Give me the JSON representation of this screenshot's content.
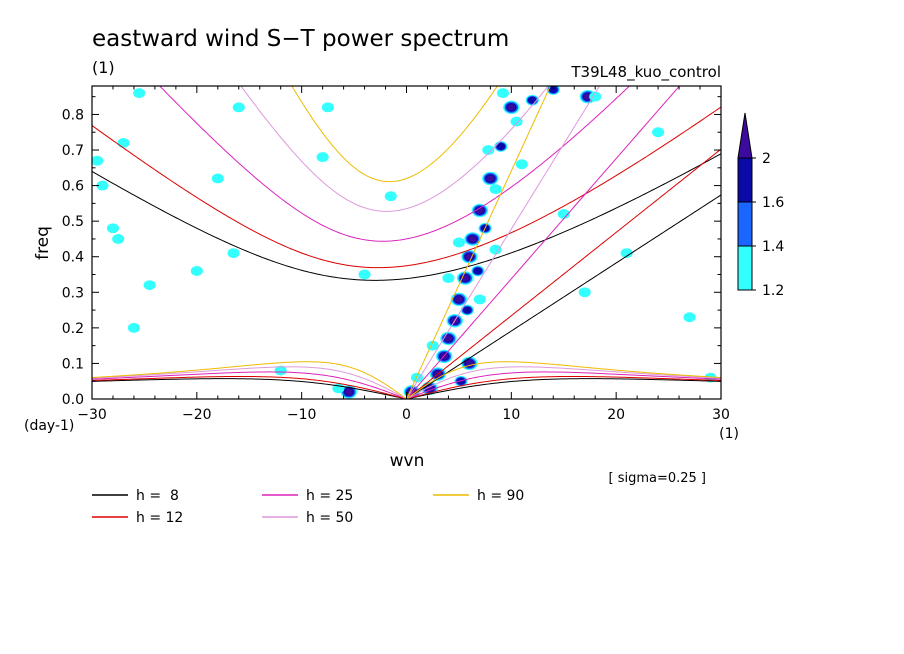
{
  "chart_data": {
    "type": "heatmap",
    "title": "eastward wind S−T power spectrum",
    "subtitle": "(1)",
    "run_label": "T39L48_kuo_control",
    "xlabel": "wvn",
    "ylabel": "freq",
    "x_unit": "(1)",
    "y_unit": "(day-1)",
    "xlim": [
      -30,
      30
    ],
    "ylim": [
      0,
      0.88
    ],
    "x_ticks": [
      -30,
      -20,
      -10,
      0,
      10,
      20,
      30
    ],
    "x_tick_labels": [
      "−30",
      "−20",
      "−10",
      "0",
      "10",
      "20",
      "30"
    ],
    "y_ticks": [
      0.0,
      0.1,
      0.2,
      0.3,
      0.4,
      0.5,
      0.6,
      0.7,
      0.8
    ],
    "y_tick_labels": [
      "0.0",
      "0.1",
      "0.2",
      "0.3",
      "0.4",
      "0.5",
      "0.6",
      "0.7",
      "0.8"
    ],
    "sigma_note": "[ sigma=0.25 ]",
    "colorbar": {
      "levels": [
        1.2,
        1.4,
        1.6,
        2.0
      ],
      "level_labels": [
        "1.2",
        "1.4",
        "1.6",
        "2"
      ],
      "colors": [
        "#33ffff",
        "#1a66ff",
        "#0a0aa8",
        "#3d0aa0"
      ]
    },
    "dispersion_curves": [
      {
        "label": "h =  8",
        "h": 8,
        "color": "#000000"
      },
      {
        "label": "h = 12",
        "h": 12,
        "color": "#dd0000"
      },
      {
        "label": "h = 25",
        "h": 25,
        "color": "#dd22bb"
      },
      {
        "label": "h = 50",
        "h": 50,
        "color": "#dd99dd"
      },
      {
        "label": "h = 90",
        "h": 90,
        "color": "#eebb00"
      }
    ],
    "shaded_regions": [
      {
        "x": 6.3,
        "y": 0.45,
        "level": 2
      },
      {
        "x": 6.0,
        "y": 0.4,
        "level": 2
      },
      {
        "x": 5.6,
        "y": 0.34,
        "level": 2
      },
      {
        "x": 5.0,
        "y": 0.28,
        "level": 2
      },
      {
        "x": 4.6,
        "y": 0.22,
        "level": 2
      },
      {
        "x": 4.0,
        "y": 0.17,
        "level": 2
      },
      {
        "x": 3.6,
        "y": 0.12,
        "level": 2
      },
      {
        "x": 3.0,
        "y": 0.07,
        "level": 2
      },
      {
        "x": 2.2,
        "y": 0.03,
        "level": 2
      },
      {
        "x": 6.0,
        "y": 0.1,
        "level": 2
      },
      {
        "x": 7.0,
        "y": 0.53,
        "level": 2
      },
      {
        "x": 8.0,
        "y": 0.62,
        "level": 2
      },
      {
        "x": 10.0,
        "y": 0.82,
        "level": 2
      },
      {
        "x": 17.3,
        "y": 0.85,
        "level": 2
      },
      {
        "x": -5.5,
        "y": 0.02,
        "level": 2
      },
      {
        "x": 0.5,
        "y": 0.02,
        "level": 2
      },
      {
        "x": 7.5,
        "y": 0.48,
        "level": 1
      },
      {
        "x": 6.8,
        "y": 0.36,
        "level": 1
      },
      {
        "x": 5.8,
        "y": 0.25,
        "level": 1
      },
      {
        "x": 9.0,
        "y": 0.71,
        "level": 1
      },
      {
        "x": 12.0,
        "y": 0.84,
        "level": 1
      },
      {
        "x": 14.0,
        "y": 0.87,
        "level": 1
      },
      {
        "x": 5.2,
        "y": 0.05,
        "level": 1
      },
      {
        "x": 8.5,
        "y": 0.59,
        "level": 0
      },
      {
        "x": 7.8,
        "y": 0.7,
        "level": 0
      },
      {
        "x": 10.5,
        "y": 0.78,
        "level": 0
      },
      {
        "x": 9.2,
        "y": 0.86,
        "level": 0
      },
      {
        "x": 11.0,
        "y": 0.66,
        "level": 0
      },
      {
        "x": 4.0,
        "y": 0.34,
        "level": 0
      },
      {
        "x": 5.0,
        "y": 0.44,
        "level": 0
      },
      {
        "x": 7.0,
        "y": 0.28,
        "level": 0
      },
      {
        "x": 8.5,
        "y": 0.42,
        "level": 0
      },
      {
        "x": 2.5,
        "y": 0.15,
        "level": 0
      },
      {
        "x": 1.0,
        "y": 0.06,
        "level": 0
      },
      {
        "x": -29.5,
        "y": 0.67,
        "level": 0
      },
      {
        "x": -29.0,
        "y": 0.6,
        "level": 0
      },
      {
        "x": -27.0,
        "y": 0.72,
        "level": 0
      },
      {
        "x": -25.5,
        "y": 0.86,
        "level": 0
      },
      {
        "x": -27.5,
        "y": 0.45,
        "level": 0
      },
      {
        "x": -28.0,
        "y": 0.48,
        "level": 0
      },
      {
        "x": -24.5,
        "y": 0.32,
        "level": 0
      },
      {
        "x": -20.0,
        "y": 0.36,
        "level": 0
      },
      {
        "x": -18.0,
        "y": 0.62,
        "level": 0
      },
      {
        "x": -16.0,
        "y": 0.82,
        "level": 0
      },
      {
        "x": -8.0,
        "y": 0.68,
        "level": 0
      },
      {
        "x": -4.0,
        "y": 0.35,
        "level": 0
      },
      {
        "x": -7.5,
        "y": 0.82,
        "level": 0
      },
      {
        "x": 15.0,
        "y": 0.52,
        "level": 0
      },
      {
        "x": 17.0,
        "y": 0.3,
        "level": 0
      },
      {
        "x": 21.0,
        "y": 0.41,
        "level": 0
      },
      {
        "x": 27.0,
        "y": 0.23,
        "level": 0
      },
      {
        "x": 29.0,
        "y": 0.06,
        "level": 0
      },
      {
        "x": -16.5,
        "y": 0.41,
        "level": 0
      },
      {
        "x": -1.5,
        "y": 0.57,
        "level": 0
      },
      {
        "x": 18.0,
        "y": 0.85,
        "level": 0
      },
      {
        "x": 24.0,
        "y": 0.75,
        "level": 0
      },
      {
        "x": -12.0,
        "y": 0.08,
        "level": 0
      },
      {
        "x": -26.0,
        "y": 0.2,
        "level": 0
      },
      {
        "x": -6.5,
        "y": 0.03,
        "level": 0
      }
    ]
  }
}
